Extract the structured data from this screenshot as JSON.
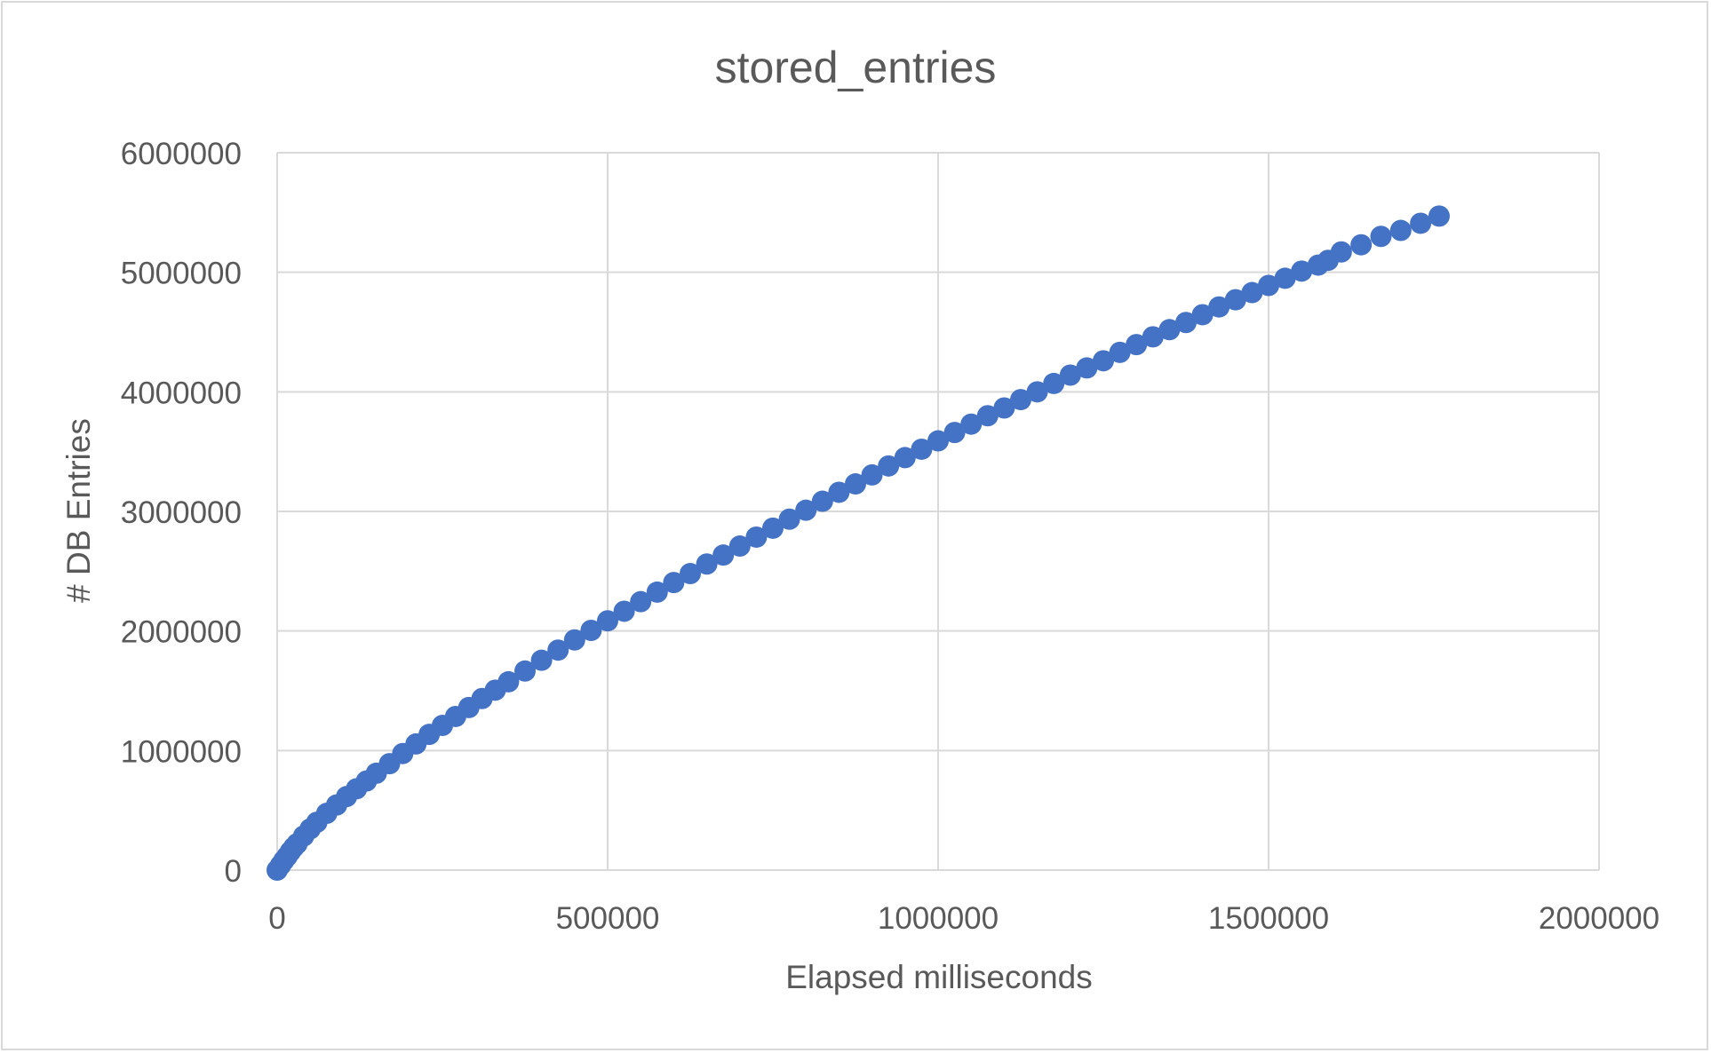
{
  "chart_data": {
    "type": "scatter",
    "title": "stored_entries",
    "xlabel": "Elapsed milliseconds",
    "ylabel": "# DB Entries",
    "xlim": [
      0,
      2000000
    ],
    "ylim": [
      0,
      6000000
    ],
    "x_ticks": [
      "0",
      "500000",
      "1000000",
      "1500000",
      "2000000"
    ],
    "y_ticks": [
      "0",
      "1000000",
      "2000000",
      "3000000",
      "4000000",
      "5000000",
      "6000000"
    ],
    "grid": true,
    "legend": "none",
    "marker_color": "#4472C4",
    "series": [
      {
        "x": [
          0,
          5000,
          10000,
          15000,
          20000,
          25000,
          30000,
          40000,
          50000,
          60000,
          75000,
          90000,
          105000,
          120000,
          135000,
          150000,
          170000,
          190000,
          210000,
          230000,
          250000,
          270000,
          290000,
          310000,
          330000,
          350000,
          375000,
          400000,
          425000,
          450000,
          475000,
          500000,
          525000,
          550000,
          575000,
          600000,
          625000,
          650000,
          675000,
          700000,
          725000,
          750000,
          775000,
          800000,
          825000,
          850000,
          875000,
          900000,
          925000,
          950000,
          975000,
          1000000,
          1025000,
          1050000,
          1075000,
          1100000,
          1125000,
          1150000,
          1175000,
          1200000,
          1225000,
          1250000,
          1275000,
          1300000,
          1325000,
          1350000,
          1375000,
          1400000,
          1425000,
          1450000,
          1475000,
          1500000,
          1525000,
          1550000,
          1575000,
          1590000,
          1610000,
          1640000,
          1670000,
          1700000,
          1730000,
          1758000
        ],
        "y": [
          0,
          40000,
          80000,
          115000,
          155000,
          190000,
          220000,
          285000,
          345000,
          400000,
          475000,
          545000,
          615000,
          680000,
          745000,
          810000,
          890000,
          975000,
          1055000,
          1135000,
          1210000,
          1285000,
          1360000,
          1435000,
          1505000,
          1575000,
          1665000,
          1755000,
          1840000,
          1925000,
          2005000,
          2085000,
          2165000,
          2245000,
          2325000,
          2405000,
          2480000,
          2560000,
          2635000,
          2710000,
          2785000,
          2860000,
          2935000,
          3010000,
          3085000,
          3160000,
          3230000,
          3305000,
          3380000,
          3450000,
          3520000,
          3590000,
          3660000,
          3730000,
          3800000,
          3865000,
          3935000,
          4000000,
          4070000,
          4140000,
          4200000,
          4260000,
          4330000,
          4395000,
          4460000,
          4520000,
          4580000,
          4645000,
          4710000,
          4770000,
          4830000,
          4890000,
          4950000,
          5010000,
          5060000,
          5100000,
          5170000,
          5230000,
          5300000,
          5350000,
          5410000,
          5470000
        ]
      }
    ]
  }
}
